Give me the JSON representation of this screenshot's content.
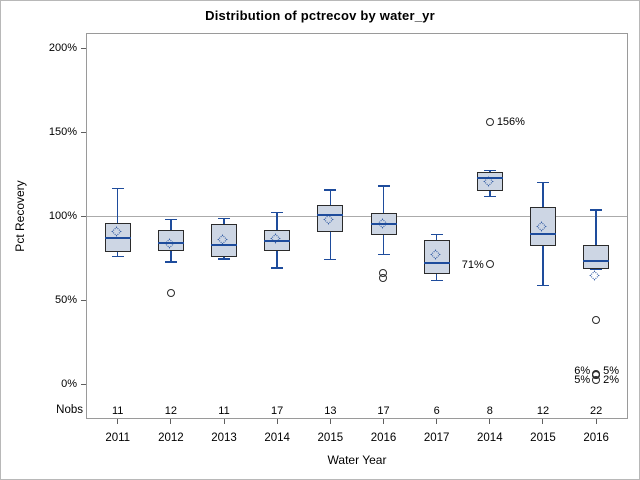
{
  "chart_data": {
    "type": "box",
    "title": "Distribution of pctrecov by water_yr",
    "xlabel": "Water Year",
    "ylabel": "Pct Recovery",
    "nobs_header": "Nobs",
    "y_ticks": [
      {
        "value": 0,
        "label": "0%"
      },
      {
        "value": 50,
        "label": "50%"
      },
      {
        "value": 100,
        "label": "100%"
      },
      {
        "value": 150,
        "label": "150%"
      },
      {
        "value": 200,
        "label": "200%"
      }
    ],
    "ylim": [
      0,
      200
    ],
    "reference_line": 100,
    "grid": false,
    "legend": false,
    "groups": [
      {
        "year": "2011",
        "nobs": "11",
        "low": 76,
        "q1": 78.5,
        "median": 87,
        "mean": 90,
        "q3": 96,
        "high": 116.5,
        "outliers": []
      },
      {
        "year": "2012",
        "nobs": "12",
        "low": 72.5,
        "q1": 79,
        "median": 84,
        "mean": 83,
        "q3": 91.5,
        "high": 98,
        "outliers": [
          {
            "value": 54
          }
        ]
      },
      {
        "year": "2013",
        "nobs": "11",
        "low": 74.5,
        "q1": 75.5,
        "median": 82.5,
        "mean": 85,
        "q3": 95.5,
        "high": 98.5,
        "outliers": []
      },
      {
        "year": "2014",
        "nobs": "17",
        "low": 69,
        "q1": 79,
        "median": 85,
        "mean": 85.5,
        "q3": 91.5,
        "high": 102,
        "outliers": []
      },
      {
        "year": "2015",
        "nobs": "13",
        "low": 74,
        "q1": 90.5,
        "median": 100.5,
        "mean": 97,
        "q3": 106.5,
        "high": 115.5,
        "outliers": []
      },
      {
        "year": "2016",
        "nobs": "17",
        "low": 77,
        "q1": 88.5,
        "median": 95.5,
        "mean": 94.5,
        "q3": 102,
        "high": 118,
        "outliers": [
          {
            "value": 66
          },
          {
            "value": 63
          }
        ]
      },
      {
        "year": "2017",
        "nobs": "6",
        "low": 61.5,
        "q1": 65.5,
        "median": 72,
        "mean": 76,
        "q3": 86,
        "high": 89,
        "outliers": []
      },
      {
        "year": "2014",
        "nobs": "8",
        "low": 111.5,
        "q1": 115,
        "median": 122.5,
        "mean": 119.5,
        "q3": 126,
        "high": 127,
        "outliers": [
          {
            "value": 156,
            "label": "156%",
            "side": "right",
            "label_v": 156
          },
          {
            "value": 71,
            "label": "71%",
            "side": "left",
            "label_v": 71
          }
        ]
      },
      {
        "year": "2015",
        "nobs": "12",
        "low": 58.5,
        "q1": 82,
        "median": 89.5,
        "mean": 93,
        "q3": 105.5,
        "high": 120,
        "outliers": []
      },
      {
        "year": "2016",
        "nobs": "22",
        "low": 68.5,
        "q1": 68.5,
        "median": 73.5,
        "mean": 63.5,
        "q3": 83,
        "high": 103.5,
        "outliers": [
          {
            "value": 38
          },
          {
            "value": 6,
            "label": "6%",
            "side": "left",
            "label_v": 7.8
          },
          {
            "value": 5,
            "label": "5%",
            "side": "right",
            "label_v": 7.8
          },
          {
            "value": 5,
            "label": "5%",
            "side": "left",
            "label_v": 2.4
          },
          {
            "value": 2,
            "label": "2%",
            "side": "right",
            "label_v": 2.4
          }
        ]
      }
    ],
    "colors": {
      "box_fill": "#cdd6e4",
      "box_border": "#2b2b2b",
      "whisker": "#1e4c9c",
      "median": "#1e4c9c",
      "mean_marker": "#1e4c9c",
      "outlier": "#2b2b2b",
      "reference_line": "#ababab",
      "frame": "#9a9a9a",
      "tick": "#5f5f5f"
    }
  }
}
